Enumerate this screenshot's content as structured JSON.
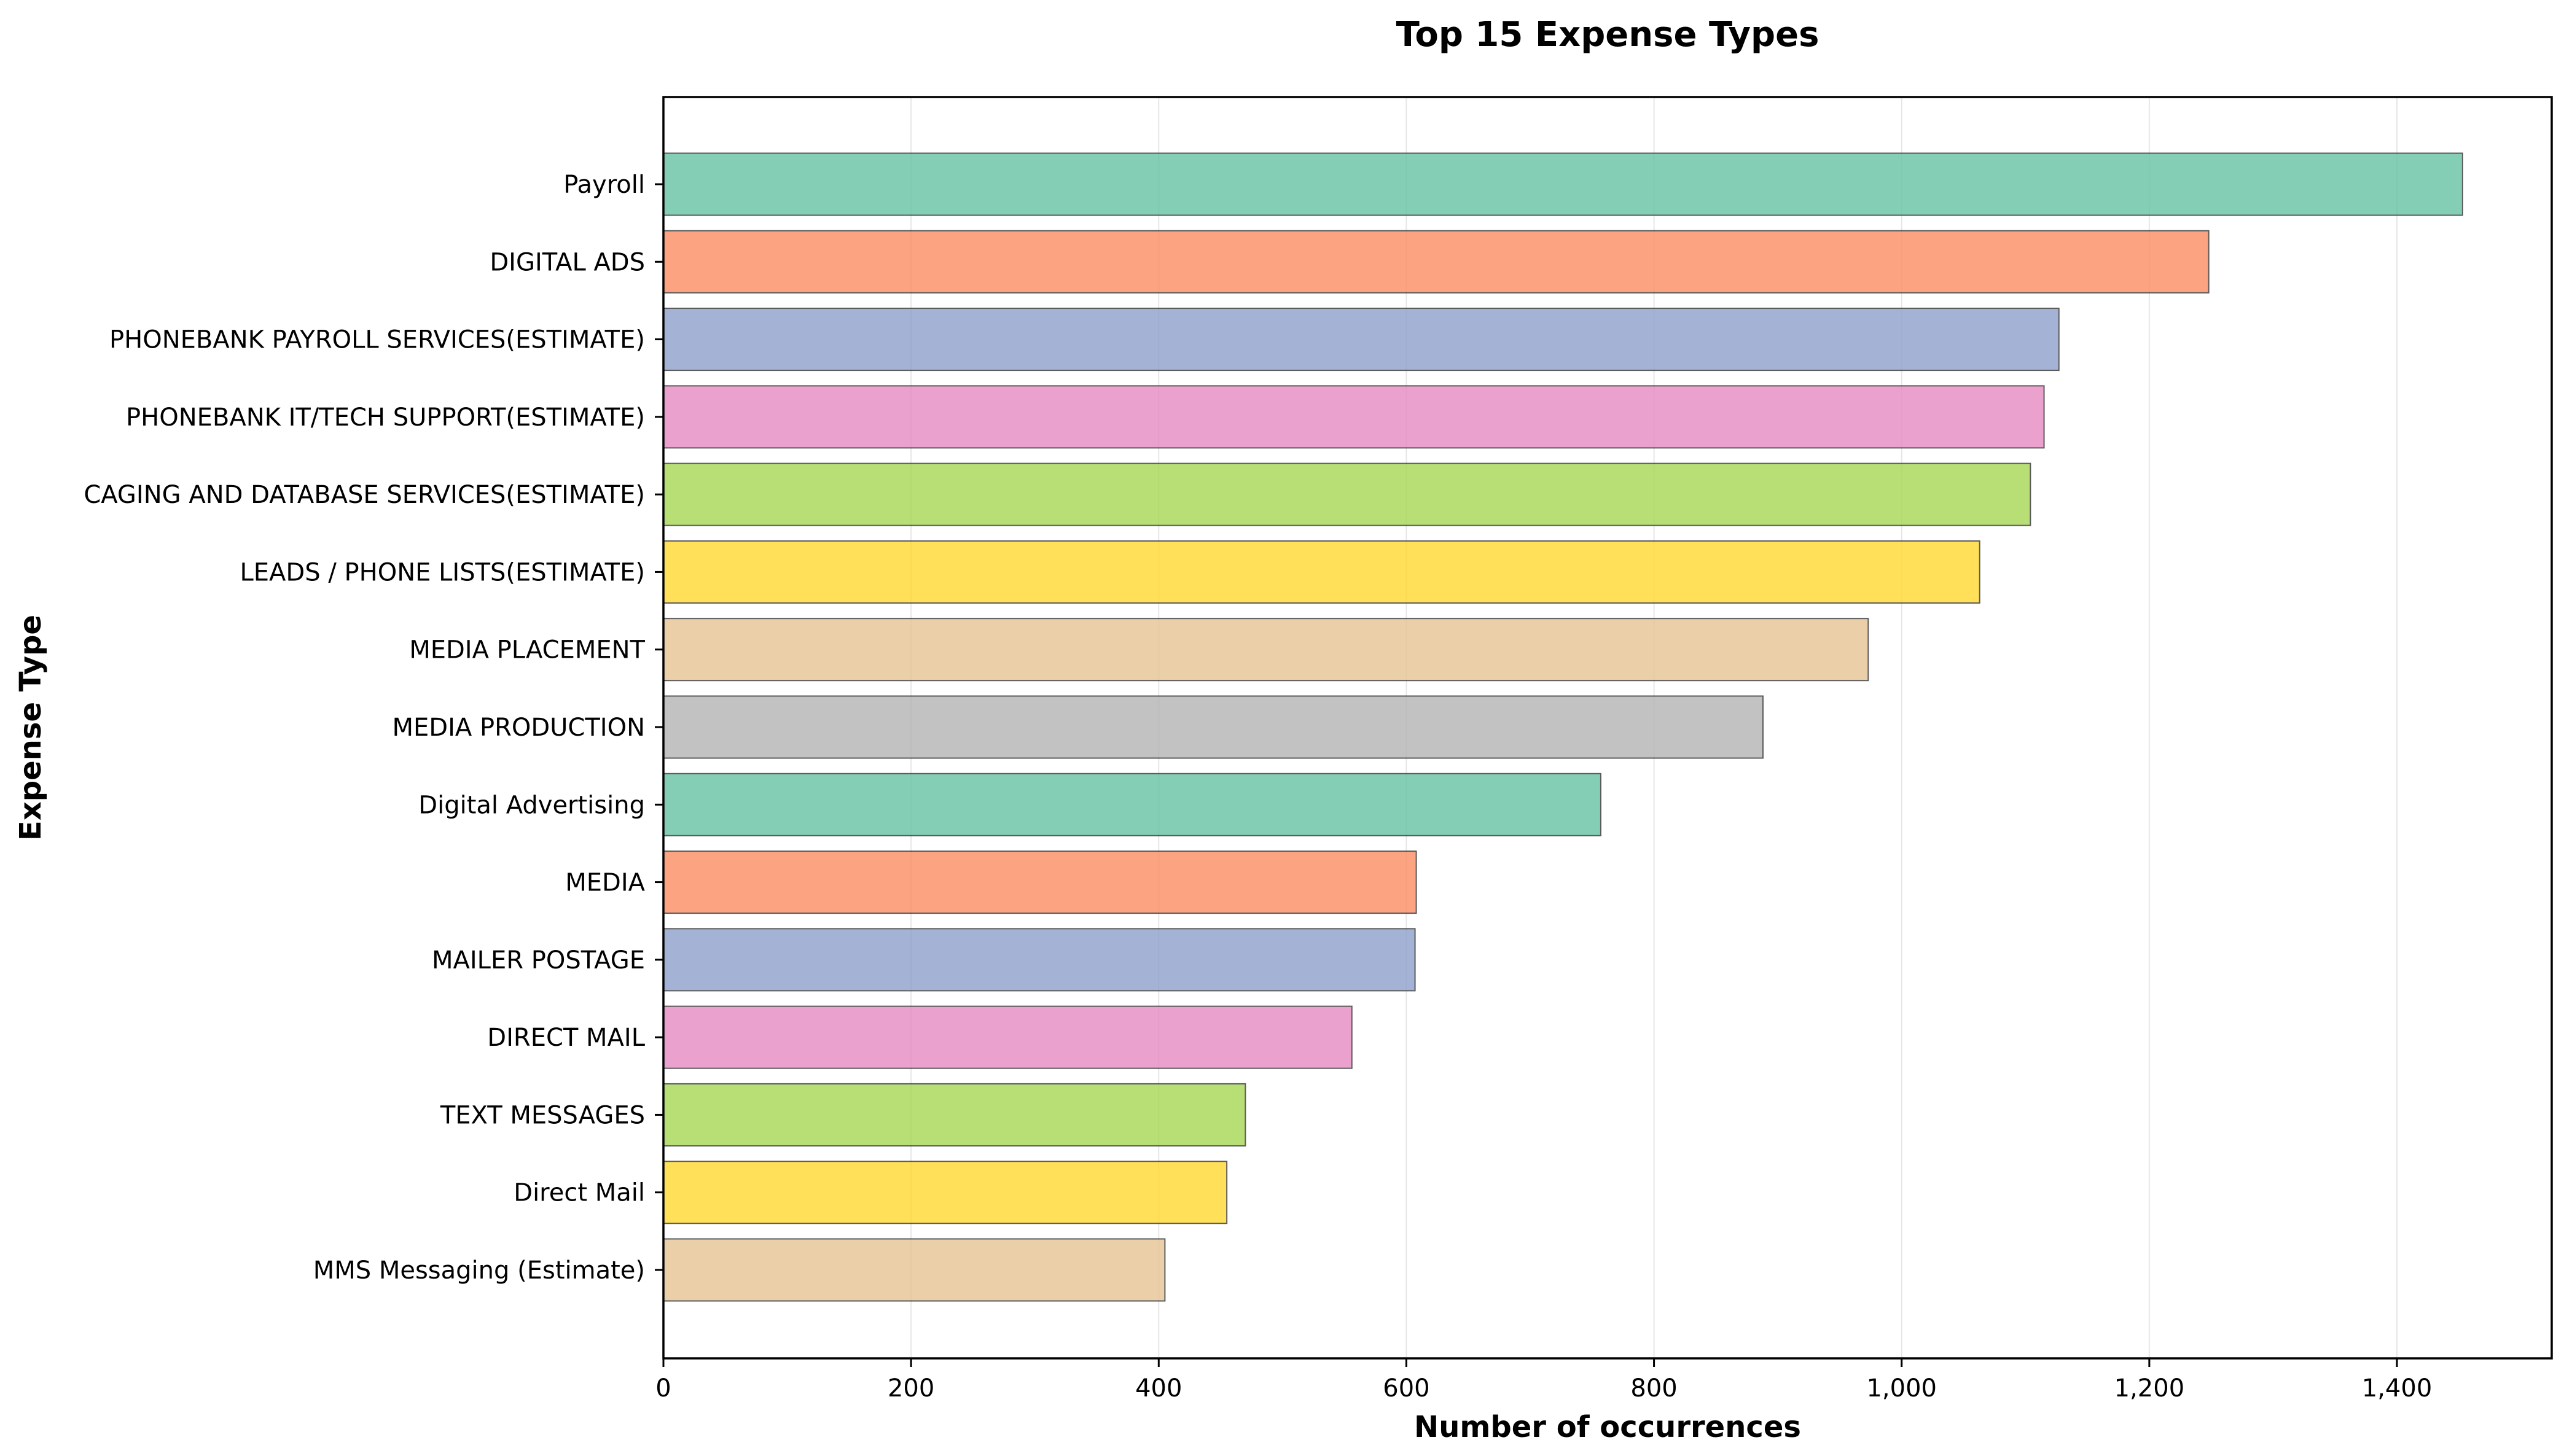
{
  "chart_data": {
    "type": "bar",
    "orientation": "horizontal",
    "title": "Top 15 Expense Types",
    "xlabel": "Number of occurrences",
    "ylabel": "Expense Type",
    "xlim": [
      0,
      1525
    ],
    "xticks": [
      0,
      200,
      400,
      600,
      800,
      1000,
      1200,
      1400
    ],
    "xtick_labels": [
      "0",
      "200",
      "400",
      "600",
      "800",
      "1,000",
      "1,200",
      "1,400"
    ],
    "grid": "vertical",
    "categories": [
      "Payroll",
      "DIGITAL ADS",
      "PHONEBANK PAYROLL SERVICES(ESTIMATE)",
      "PHONEBANK IT/TECH SUPPORT(ESTIMATE)",
      "CAGING AND DATABASE SERVICES(ESTIMATE)",
      "LEADS / PHONE LISTS(ESTIMATE)",
      "MEDIA PLACEMENT",
      "MEDIA PRODUCTION",
      "Digital Advertising",
      "MEDIA",
      "MAILER POSTAGE",
      "DIRECT MAIL",
      "TEXT MESSAGES",
      "Direct Mail",
      "MMS Messaging (Estimate)"
    ],
    "values": [
      1453,
      1248,
      1127,
      1115,
      1104,
      1063,
      973,
      888,
      757,
      608,
      607,
      556,
      470,
      455,
      405
    ],
    "colors": [
      "#66c2a5",
      "#fc8d62",
      "#8da0cb",
      "#e78ac3",
      "#a6d854",
      "#ffd92f",
      "#e5c494",
      "#b3b3b3",
      "#66c2a5",
      "#fc8d62",
      "#8da0cb",
      "#e78ac3",
      "#a6d854",
      "#ffd92f",
      "#e5c494"
    ]
  }
}
